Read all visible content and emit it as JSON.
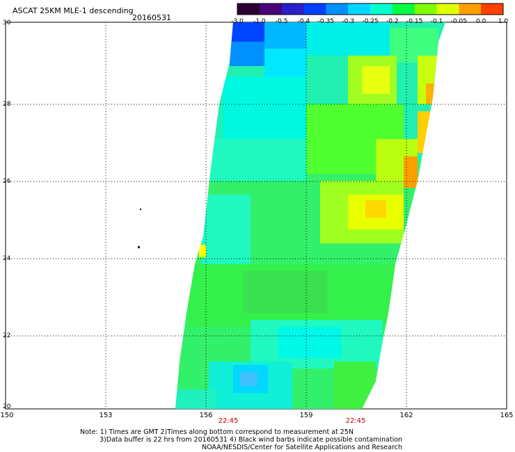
{
  "header": {
    "title": "ASCAT 25KM MLE-1 descending",
    "date": "20160531"
  },
  "colorbar": {
    "labels": [
      "-3.0",
      "-1.0",
      "-0.5",
      "-0.4",
      "-0.35",
      "-0.3",
      "-0.25",
      "-0.2",
      "-0.15",
      "-0.1",
      "-0.05",
      "0.0",
      "1.0"
    ],
    "colors": [
      "#2a0030",
      "#4a0078",
      "#2a1ec8",
      "#0040ff",
      "#0090ff",
      "#00d8ff",
      "#00ffd0",
      "#00ff40",
      "#80ff00",
      "#e0ff00",
      "#ffa000",
      "#ff4000"
    ]
  },
  "axes": {
    "y_ticks": [
      "30",
      "28",
      "26",
      "24",
      "22",
      "20"
    ],
    "x_ticks": [
      "150",
      "153",
      "156",
      "159",
      "162",
      "165"
    ]
  },
  "times": [
    "22:45",
    "22:45"
  ],
  "notes": {
    "line1": "Note: 1) Times are GMT 2)Times along bottom correspond to measurement at 25N",
    "line2": "3)Data buffer is 22 hrs from 20160531 4) Black wind barbs indicate possible contamination",
    "line3": "NOAA/NESDIS/Center for Satellite Applications and Research"
  }
}
